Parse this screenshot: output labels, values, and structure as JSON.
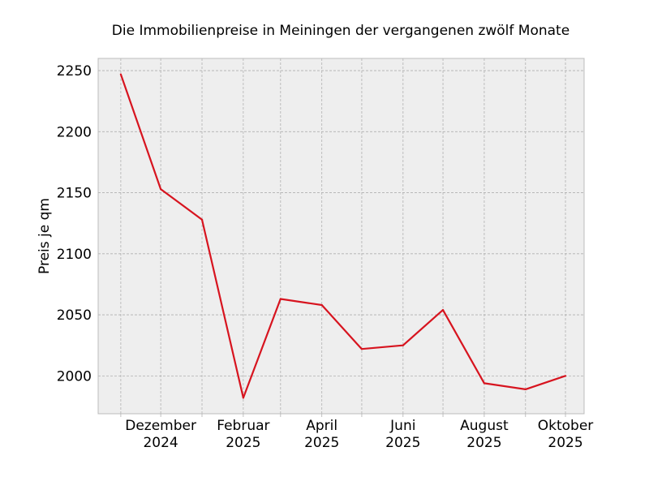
{
  "chart_data": {
    "type": "line",
    "title": "Die Immobilienpreise in Meiningen der vergangenen zwölf Monate",
    "xlabel": "",
    "ylabel": "Preis je qm",
    "x": [
      "2024-11",
      "2024-12",
      "2025-01",
      "2025-02",
      "2025-03",
      "2025-04",
      "2025-05",
      "2025-06",
      "2025-07",
      "2025-08",
      "2025-09",
      "2025-10"
    ],
    "series": [
      {
        "values": [
          2247,
          2153,
          2128,
          1982,
          2063,
          2058,
          2022,
          2025,
          2054,
          1994,
          1989,
          2000
        ]
      }
    ],
    "xlim": [
      "2024-10-15",
      "2025-10-15"
    ],
    "ylim": [
      1969,
      2260
    ],
    "yticks": [
      2000,
      2050,
      2100,
      2150,
      2200,
      2250
    ],
    "xticks": [
      {
        "x": "2024-12",
        "label": [
          "Dezember",
          "2024"
        ]
      },
      {
        "x": "2025-02",
        "label": [
          "Februar",
          "2025"
        ]
      },
      {
        "x": "2025-04",
        "label": [
          "April",
          "2025"
        ]
      },
      {
        "x": "2025-06",
        "label": [
          "Juni",
          "2025"
        ]
      },
      {
        "x": "2025-08",
        "label": [
          "August",
          "2025"
        ]
      },
      {
        "x": "2025-10",
        "label": [
          "Oktober",
          "2025"
        ]
      }
    ],
    "grid": true,
    "colors": {
      "line": "#d7141f",
      "plot_background": "#eeeeee",
      "grid": "#b0b0b0",
      "frame": "#bcbcbc"
    }
  }
}
